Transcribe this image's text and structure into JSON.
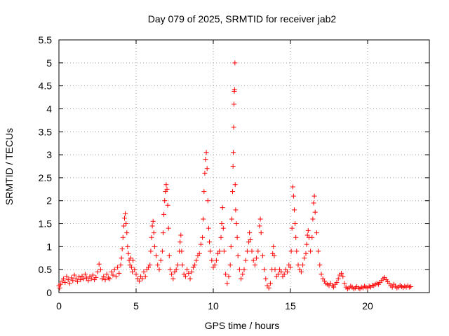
{
  "chart_data": {
    "type": "scatter",
    "title": "Day 079 of 2025, SRMTID for receiver jab2",
    "xlabel": "GPS time / hours",
    "ylabel": "SRMTID / TECUs",
    "xlim": [
      0,
      24
    ],
    "ylim": [
      0,
      5.5
    ],
    "xticks": [
      0,
      5,
      10,
      15,
      20
    ],
    "xtick_labels": [
      "0",
      "5",
      "10",
      "15",
      "20"
    ],
    "yticks": [
      0,
      0.5,
      1,
      1.5,
      2,
      2.5,
      3,
      3.5,
      4,
      4.5,
      5,
      5.5
    ],
    "ytick_labels": [
      "0",
      "0.5",
      "1",
      "1.5",
      "2",
      "2.5",
      "3",
      "3.5",
      "4",
      "4.5",
      "5",
      "5.5"
    ],
    "grid": true,
    "marker": "+",
    "marker_color": "#ff0000",
    "series": [
      {
        "name": "SRMTID",
        "points": [
          [
            0.0,
            0.15
          ],
          [
            0.05,
            0.1
          ],
          [
            0.1,
            0.18
          ],
          [
            0.2,
            0.25
          ],
          [
            0.3,
            0.3
          ],
          [
            0.4,
            0.22
          ],
          [
            0.5,
            0.35
          ],
          [
            0.6,
            0.28
          ],
          [
            0.7,
            0.2
          ],
          [
            0.8,
            0.32
          ],
          [
            0.9,
            0.26
          ],
          [
            1.0,
            0.38
          ],
          [
            1.1,
            0.3
          ],
          [
            1.2,
            0.24
          ],
          [
            1.3,
            0.34
          ],
          [
            1.4,
            0.28
          ],
          [
            1.5,
            0.36
          ],
          [
            1.6,
            0.3
          ],
          [
            1.7,
            0.4
          ],
          [
            1.8,
            0.32
          ],
          [
            1.9,
            0.26
          ],
          [
            2.0,
            0.35
          ],
          [
            2.1,
            0.3
          ],
          [
            2.2,
            0.38
          ],
          [
            2.3,
            0.28
          ],
          [
            2.4,
            0.33
          ],
          [
            2.5,
            0.45
          ],
          [
            2.6,
            0.62
          ],
          [
            2.7,
            0.5
          ],
          [
            2.8,
            0.3
          ],
          [
            2.9,
            0.35
          ],
          [
            3.0,
            0.28
          ],
          [
            3.1,
            0.4
          ],
          [
            3.2,
            0.32
          ],
          [
            3.3,
            0.3
          ],
          [
            3.4,
            0.45
          ],
          [
            3.5,
            0.38
          ],
          [
            3.6,
            0.5
          ],
          [
            3.7,
            0.35
          ],
          [
            3.8,
            0.55
          ],
          [
            3.9,
            0.42
          ],
          [
            4.0,
            0.6
          ],
          [
            4.05,
            0.75
          ],
          [
            4.1,
            0.95
          ],
          [
            4.15,
            1.2
          ],
          [
            4.2,
            1.45
          ],
          [
            4.25,
            1.62
          ],
          [
            4.3,
            1.72
          ],
          [
            4.35,
            1.5
          ],
          [
            4.4,
            1.3
          ],
          [
            4.45,
            1.0
          ],
          [
            4.5,
            0.85
          ],
          [
            4.55,
            0.7
          ],
          [
            4.6,
            0.6
          ],
          [
            4.65,
            0.75
          ],
          [
            4.7,
            0.55
          ],
          [
            4.75,
            0.45
          ],
          [
            4.8,
            0.7
          ],
          [
            4.9,
            0.5
          ],
          [
            5.0,
            0.4
          ],
          [
            5.1,
            0.3
          ],
          [
            5.2,
            0.25
          ],
          [
            5.3,
            0.35
          ],
          [
            5.4,
            0.3
          ],
          [
            5.5,
            0.45
          ],
          [
            5.6,
            0.35
          ],
          [
            5.7,
            0.5
          ],
          [
            5.8,
            0.55
          ],
          [
            5.9,
            0.6
          ],
          [
            5.95,
            0.9
          ],
          [
            6.0,
            1.2
          ],
          [
            6.05,
            1.45
          ],
          [
            6.1,
            1.55
          ],
          [
            6.15,
            1.3
          ],
          [
            6.2,
            1.0
          ],
          [
            6.3,
            0.8
          ],
          [
            6.4,
            0.6
          ],
          [
            6.5,
            0.5
          ],
          [
            6.6,
            0.7
          ],
          [
            6.7,
            0.9
          ],
          [
            6.75,
            1.3
          ],
          [
            6.8,
            1.7
          ],
          [
            6.85,
            2.0
          ],
          [
            6.9,
            2.2
          ],
          [
            6.95,
            2.35
          ],
          [
            7.0,
            2.25
          ],
          [
            7.05,
            1.9
          ],
          [
            7.1,
            1.4
          ],
          [
            7.15,
            0.8
          ],
          [
            7.2,
            0.5
          ],
          [
            7.3,
            0.4
          ],
          [
            7.4,
            0.3
          ],
          [
            7.5,
            0.45
          ],
          [
            7.6,
            0.5
          ],
          [
            7.7,
            0.6
          ],
          [
            7.8,
            0.9
          ],
          [
            7.85,
            1.1
          ],
          [
            7.9,
            1.25
          ],
          [
            7.95,
            0.9
          ],
          [
            8.0,
            0.6
          ],
          [
            8.1,
            0.4
          ],
          [
            8.2,
            0.35
          ],
          [
            8.3,
            0.5
          ],
          [
            8.4,
            0.42
          ],
          [
            8.5,
            0.3
          ],
          [
            8.6,
            0.45
          ],
          [
            8.7,
            0.55
          ],
          [
            8.8,
            0.6
          ],
          [
            8.9,
            0.7
          ],
          [
            9.0,
            0.8
          ],
          [
            9.1,
            0.85
          ],
          [
            9.2,
            1.05
          ],
          [
            9.3,
            1.2
          ],
          [
            9.35,
            1.6
          ],
          [
            9.4,
            2.2
          ],
          [
            9.45,
            2.6
          ],
          [
            9.5,
            2.9
          ],
          [
            9.55,
            3.05
          ],
          [
            9.6,
            2.7
          ],
          [
            9.65,
            2.0
          ],
          [
            9.7,
            1.4
          ],
          [
            9.75,
            1.1
          ],
          [
            9.8,
            0.9
          ],
          [
            9.9,
            0.7
          ],
          [
            10.0,
            0.55
          ],
          [
            10.1,
            0.6
          ],
          [
            10.2,
            0.7
          ],
          [
            10.3,
            0.85
          ],
          [
            10.4,
            0.9
          ],
          [
            10.5,
            1.2
          ],
          [
            10.55,
            1.5
          ],
          [
            10.6,
            1.85
          ],
          [
            10.65,
            1.4
          ],
          [
            10.7,
            0.9
          ],
          [
            10.8,
            0.4
          ],
          [
            10.9,
            0.2
          ],
          [
            11.0,
            0.35
          ],
          [
            11.1,
            0.6
          ],
          [
            11.15,
            1.0
          ],
          [
            11.2,
            1.6
          ],
          [
            11.25,
            2.2
          ],
          [
            11.28,
            2.75
          ],
          [
            11.3,
            3.05
          ],
          [
            11.32,
            3.6
          ],
          [
            11.34,
            4.1
          ],
          [
            11.36,
            4.38
          ],
          [
            11.38,
            4.42
          ],
          [
            11.4,
            5.0
          ],
          [
            11.42,
            2.35
          ],
          [
            11.45,
            1.8
          ],
          [
            11.5,
            1.5
          ],
          [
            11.55,
            1.2
          ],
          [
            11.6,
            0.8
          ],
          [
            11.7,
            0.5
          ],
          [
            11.8,
            0.3
          ],
          [
            11.9,
            0.4
          ],
          [
            12.0,
            0.5
          ],
          [
            12.1,
            0.7
          ],
          [
            12.2,
            0.9
          ],
          [
            12.3,
            1.1
          ],
          [
            12.35,
            1.3
          ],
          [
            12.4,
            1.15
          ],
          [
            12.5,
            0.9
          ],
          [
            12.6,
            0.7
          ],
          [
            12.7,
            0.6
          ],
          [
            12.8,
            0.75
          ],
          [
            12.9,
            0.9
          ],
          [
            13.0,
            1.45
          ],
          [
            13.05,
            1.6
          ],
          [
            13.1,
            1.3
          ],
          [
            13.2,
            0.8
          ],
          [
            13.3,
            0.5
          ],
          [
            13.4,
            0.3
          ],
          [
            13.5,
            0.15
          ],
          [
            13.6,
            0.1
          ],
          [
            13.7,
            0.2
          ],
          [
            13.8,
            0.5
          ],
          [
            13.85,
            0.85
          ],
          [
            13.9,
            1.0
          ],
          [
            13.95,
            0.8
          ],
          [
            14.0,
            0.5
          ],
          [
            14.1,
            0.35
          ],
          [
            14.2,
            0.4
          ],
          [
            14.3,
            0.5
          ],
          [
            14.4,
            0.45
          ],
          [
            14.5,
            0.35
          ],
          [
            14.6,
            0.4
          ],
          [
            14.7,
            0.5
          ],
          [
            14.8,
            0.45
          ],
          [
            14.9,
            0.6
          ],
          [
            15.0,
            0.55
          ],
          [
            15.05,
            0.9
          ],
          [
            15.1,
            1.4
          ],
          [
            15.15,
            2.3
          ],
          [
            15.2,
            2.1
          ],
          [
            15.25,
            1.8
          ],
          [
            15.3,
            1.5
          ],
          [
            15.35,
            1.2
          ],
          [
            15.4,
            0.9
          ],
          [
            15.5,
            0.6
          ],
          [
            15.6,
            0.5
          ],
          [
            15.7,
            0.45
          ],
          [
            15.8,
            0.6
          ],
          [
            15.9,
            0.75
          ],
          [
            16.0,
            0.85
          ],
          [
            16.05,
            1.05
          ],
          [
            16.1,
            1.25
          ],
          [
            16.15,
            1.35
          ],
          [
            16.2,
            1.2
          ],
          [
            16.3,
            0.9
          ],
          [
            16.4,
            1.2
          ],
          [
            16.45,
            1.6
          ],
          [
            16.5,
            1.95
          ],
          [
            16.55,
            2.1
          ],
          [
            16.6,
            1.75
          ],
          [
            16.7,
            1.3
          ],
          [
            16.8,
            0.9
          ],
          [
            16.9,
            0.6
          ],
          [
            17.0,
            0.4
          ],
          [
            17.1,
            0.3
          ],
          [
            17.2,
            0.25
          ],
          [
            17.3,
            0.2
          ],
          [
            17.4,
            0.18
          ],
          [
            17.5,
            0.15
          ],
          [
            17.6,
            0.2
          ],
          [
            17.7,
            0.15
          ],
          [
            17.8,
            0.12
          ],
          [
            17.9,
            0.18
          ],
          [
            18.0,
            0.22
          ],
          [
            18.1,
            0.3
          ],
          [
            18.2,
            0.38
          ],
          [
            18.3,
            0.42
          ],
          [
            18.4,
            0.35
          ],
          [
            18.5,
            0.2
          ],
          [
            18.6,
            0.12
          ],
          [
            18.7,
            0.08
          ],
          [
            18.8,
            0.1
          ],
          [
            18.9,
            0.14
          ],
          [
            19.0,
            0.12
          ],
          [
            19.1,
            0.08
          ],
          [
            19.2,
            0.1
          ],
          [
            19.3,
            0.13
          ],
          [
            19.4,
            0.1
          ],
          [
            19.5,
            0.08
          ],
          [
            19.6,
            0.12
          ],
          [
            19.7,
            0.1
          ],
          [
            19.8,
            0.14
          ],
          [
            19.9,
            0.12
          ],
          [
            20.0,
            0.1
          ],
          [
            20.1,
            0.14
          ],
          [
            20.2,
            0.12
          ],
          [
            20.3,
            0.16
          ],
          [
            20.4,
            0.15
          ],
          [
            20.5,
            0.18
          ],
          [
            20.6,
            0.2
          ],
          [
            20.7,
            0.18
          ],
          [
            20.8,
            0.22
          ],
          [
            20.9,
            0.26
          ],
          [
            21.0,
            0.3
          ],
          [
            21.1,
            0.33
          ],
          [
            21.2,
            0.28
          ],
          [
            21.3,
            0.24
          ],
          [
            21.4,
            0.2
          ],
          [
            21.5,
            0.15
          ],
          [
            21.6,
            0.12
          ],
          [
            21.7,
            0.18
          ],
          [
            21.8,
            0.14
          ],
          [
            21.9,
            0.1
          ],
          [
            22.0,
            0.12
          ],
          [
            22.1,
            0.16
          ],
          [
            22.2,
            0.13
          ],
          [
            22.3,
            0.11
          ],
          [
            22.4,
            0.14
          ],
          [
            22.5,
            0.12
          ],
          [
            22.6,
            0.15
          ],
          [
            22.7,
            0.12
          ],
          [
            22.8,
            0.13
          ]
        ]
      }
    ]
  }
}
